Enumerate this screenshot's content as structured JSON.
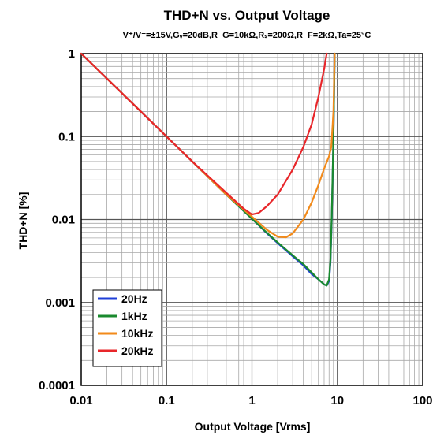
{
  "chart_data": {
    "type": "line",
    "title": "THD+N vs. Output Voltage",
    "subtitle": "V⁺/V⁻=±15V,Gᵥ=20dB,R_G=10kΩ,Rₛ=200Ω,R_F=2kΩ,Ta=25°C",
    "xlabel": "Output Voltage [Vrms]",
    "ylabel": "THD+N [%]",
    "xscale": "log",
    "yscale": "log",
    "xlim": [
      0.01,
      100
    ],
    "ylim": [
      0.0001,
      1
    ],
    "x_tick_labels": [
      "0.01",
      "0.1",
      "1",
      "10",
      "100"
    ],
    "y_tick_labels": [
      "1",
      "0.1",
      "0.01",
      "0.001",
      "0.0001"
    ],
    "x_ticks": [
      0.01,
      0.1,
      1,
      10,
      100
    ],
    "y_ticks": [
      1,
      0.1,
      0.01,
      0.001,
      0.0001
    ],
    "grid": true,
    "legend_position": "bottom-left",
    "series": [
      {
        "name": "20Hz",
        "color": "#1f3fd8",
        "points": [
          [
            0.01,
            1.0
          ],
          [
            0.02,
            0.5
          ],
          [
            0.05,
            0.2
          ],
          [
            0.1,
            0.1
          ],
          [
            0.2,
            0.05
          ],
          [
            0.5,
            0.02
          ],
          [
            1.0,
            0.0102
          ],
          [
            1.5,
            0.0068
          ],
          [
            2.0,
            0.0052
          ],
          [
            3.0,
            0.0036
          ],
          [
            4.0,
            0.0028
          ],
          [
            5.0,
            0.0022
          ],
          [
            6.0,
            0.0019
          ],
          [
            7.0,
            0.00165
          ],
          [
            7.5,
            0.0016
          ],
          [
            8.0,
            0.0018
          ],
          [
            8.3,
            0.003
          ],
          [
            8.6,
            0.01
          ],
          [
            9.0,
            0.1
          ],
          [
            9.3,
            1.0
          ]
        ]
      },
      {
        "name": "1kHz",
        "color": "#1a8a2e",
        "points": [
          [
            0.01,
            1.0
          ],
          [
            0.02,
            0.5
          ],
          [
            0.05,
            0.2
          ],
          [
            0.1,
            0.1
          ],
          [
            0.2,
            0.05
          ],
          [
            0.5,
            0.02
          ],
          [
            1.0,
            0.0102
          ],
          [
            1.5,
            0.0069
          ],
          [
            2.0,
            0.0053
          ],
          [
            3.0,
            0.0037
          ],
          [
            4.0,
            0.0029
          ],
          [
            5.0,
            0.0023
          ],
          [
            6.0,
            0.0019
          ],
          [
            7.0,
            0.00165
          ],
          [
            7.5,
            0.0016
          ],
          [
            8.0,
            0.0019
          ],
          [
            8.3,
            0.0032
          ],
          [
            8.6,
            0.011
          ],
          [
            9.0,
            0.1
          ],
          [
            9.3,
            1.0
          ]
        ]
      },
      {
        "name": "10kHz",
        "color": "#f28a1a",
        "points": [
          [
            0.01,
            1.0
          ],
          [
            0.02,
            0.5
          ],
          [
            0.05,
            0.2
          ],
          [
            0.1,
            0.1
          ],
          [
            0.2,
            0.05
          ],
          [
            0.5,
            0.02
          ],
          [
            1.0,
            0.0108
          ],
          [
            1.5,
            0.0075
          ],
          [
            2.0,
            0.0062
          ],
          [
            2.5,
            0.0061
          ],
          [
            3.0,
            0.0068
          ],
          [
            4.0,
            0.01
          ],
          [
            5.0,
            0.016
          ],
          [
            6.0,
            0.026
          ],
          [
            7.0,
            0.041
          ],
          [
            8.0,
            0.058
          ],
          [
            8.5,
            0.075
          ],
          [
            9.0,
            0.2
          ],
          [
            9.3,
            1.0
          ]
        ]
      },
      {
        "name": "20kHz",
        "color": "#e8262a",
        "points": [
          [
            0.01,
            1.0
          ],
          [
            0.02,
            0.5
          ],
          [
            0.05,
            0.2
          ],
          [
            0.1,
            0.1
          ],
          [
            0.2,
            0.05
          ],
          [
            0.5,
            0.021
          ],
          [
            0.8,
            0.0135
          ],
          [
            1.0,
            0.0115
          ],
          [
            1.2,
            0.012
          ],
          [
            1.5,
            0.0145
          ],
          [
            2.0,
            0.02
          ],
          [
            3.0,
            0.04
          ],
          [
            4.0,
            0.075
          ],
          [
            5.0,
            0.14
          ],
          [
            6.0,
            0.3
          ],
          [
            7.0,
            0.65
          ],
          [
            7.5,
            1.0
          ]
        ]
      }
    ]
  }
}
